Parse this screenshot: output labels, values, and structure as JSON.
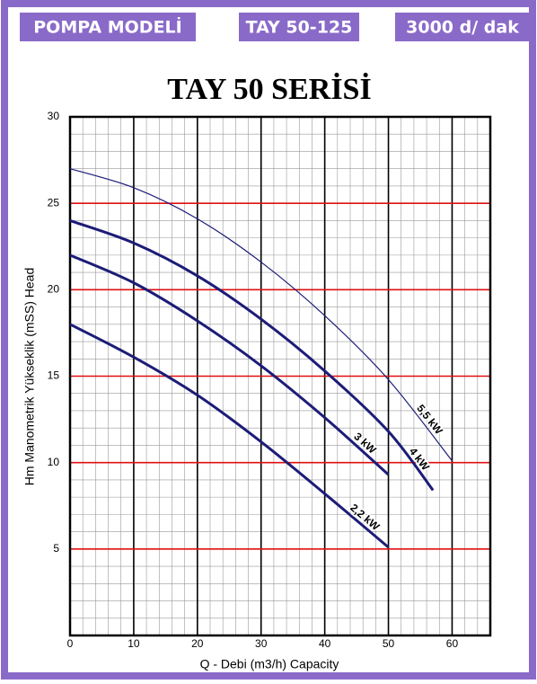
{
  "header": {
    "model_label": "POMPA MODELİ",
    "model": "TAY 50-125",
    "speed": "3000 d/ dak"
  },
  "chart_data": {
    "type": "line",
    "title": "TAY 50 SERİSİ",
    "x_label": "Q - Debi (m3/h) Capacity",
    "y_label": "Hm Manometrik Yükseklik (mSS) Head",
    "x": [
      0,
      10,
      20,
      30,
      40,
      50,
      57,
      60
    ],
    "series": [
      {
        "name": "5,5 kW",
        "color": "#1c1c78",
        "width": 1.2,
        "values": [
          27,
          25.9,
          24.1,
          21.6,
          18.5,
          14.8,
          null,
          10.1
        ]
      },
      {
        "name": "4 kW",
        "color": "#1c1c78",
        "width": 3,
        "values": [
          24,
          22.7,
          20.8,
          18.3,
          15.3,
          11.8,
          8.4,
          null
        ]
      },
      {
        "name": "3 kW",
        "color": "#1c1c78",
        "width": 3,
        "values": [
          22,
          20.4,
          18.2,
          15.6,
          12.6,
          9.3,
          null,
          null
        ]
      },
      {
        "name": "2,2 kW",
        "color": "#1c1c78",
        "width": 3,
        "values": [
          18,
          16.1,
          13.9,
          11.2,
          8.2,
          5.1,
          null,
          null
        ]
      }
    ],
    "xlim": [
      0,
      66
    ],
    "ylim": [
      0,
      30
    ],
    "xticks": [
      0,
      10,
      20,
      30,
      40,
      50,
      60
    ],
    "yticks": [
      5,
      10,
      15,
      20,
      25,
      30
    ],
    "grid": true,
    "x_grid_color": "#000000",
    "y_grid_color": "#e01010"
  }
}
